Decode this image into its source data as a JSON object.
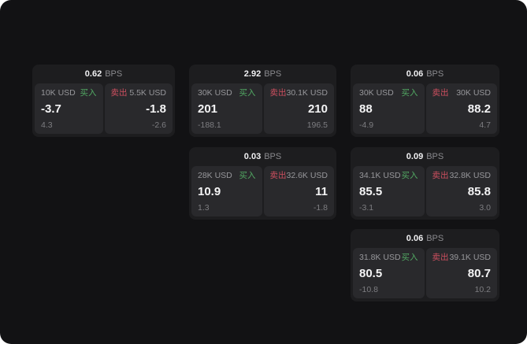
{
  "colors": {
    "buy": "#52a963",
    "sell": "#cd4f5f",
    "page_bg": "#121214",
    "card_bg": "#1d1d1f",
    "panel_bg": "#29292c"
  },
  "cards": [
    {
      "bps": "0.62",
      "unit": "BPS",
      "buy": {
        "amount": "10K USD",
        "label": "买入",
        "price": "-3.7",
        "delta": "4.3"
      },
      "sell": {
        "label": "卖出",
        "amount": "5.5K USD",
        "price": "-1.8",
        "delta": "-2.6"
      }
    },
    {
      "bps": "2.92",
      "unit": "BPS",
      "buy": {
        "amount": "30K USD",
        "label": "买入",
        "price": "201",
        "delta": "-188.1"
      },
      "sell": {
        "label": "卖出",
        "amount": "30.1K USD",
        "price": "210",
        "delta": "196.5"
      }
    },
    {
      "bps": "0.06",
      "unit": "BPS",
      "buy": {
        "amount": "30K USD",
        "label": "买入",
        "price": "88",
        "delta": "-4.9"
      },
      "sell": {
        "label": "卖出",
        "amount": "30K USD",
        "price": "88.2",
        "delta": "4.7"
      }
    },
    {
      "bps": "0.03",
      "unit": "BPS",
      "buy": {
        "amount": "28K USD",
        "label": "买入",
        "price": "10.9",
        "delta": "1.3"
      },
      "sell": {
        "label": "卖出",
        "amount": "32.6K USD",
        "price": "11",
        "delta": "-1.8"
      }
    },
    {
      "bps": "0.09",
      "unit": "BPS",
      "buy": {
        "amount": "34.1K USD",
        "label": "买入",
        "price": "85.5",
        "delta": "-3.1"
      },
      "sell": {
        "label": "卖出",
        "amount": "32.8K USD",
        "price": "85.8",
        "delta": "3.0"
      }
    },
    {
      "bps": "0.06",
      "unit": "BPS",
      "buy": {
        "amount": "31.8K USD",
        "label": "买入",
        "price": "80.5",
        "delta": "-10.8"
      },
      "sell": {
        "label": "卖出",
        "amount": "39.1K USD",
        "price": "80.7",
        "delta": "10.2"
      }
    }
  ]
}
